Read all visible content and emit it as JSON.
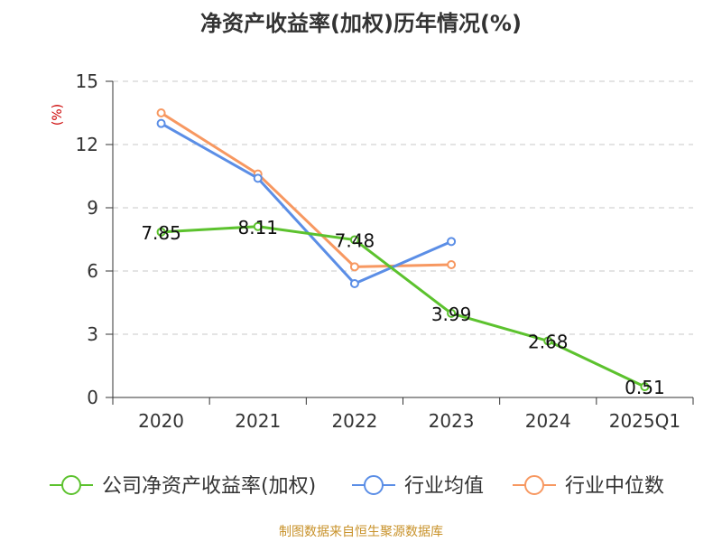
{
  "chart_data": {
    "type": "line",
    "title": "净资产收益率(加权)历年情况(%)",
    "ylabel": "(%)",
    "xlabel": "",
    "categories": [
      "2020",
      "2021",
      "2022",
      "2023",
      "2024",
      "2025Q1"
    ],
    "yticks": [
      0,
      3,
      6,
      9,
      12,
      15
    ],
    "ylim": [
      0,
      15
    ],
    "grid": true,
    "legend_position": "bottom",
    "series": [
      {
        "name": "公司净资产收益率(加权)",
        "color": "#5cc22e",
        "values": [
          7.85,
          8.11,
          7.48,
          3.99,
          2.68,
          0.51
        ],
        "labels": [
          "7.85",
          "8.11",
          "7.48",
          "3.99",
          "2.68",
          "0.51"
        ]
      },
      {
        "name": "行业均值",
        "color": "#5b8ee6",
        "values": [
          13.0,
          10.4,
          5.4,
          7.4,
          null,
          null
        ]
      },
      {
        "name": "行业中位数",
        "color": "#f79861",
        "values": [
          13.5,
          10.6,
          6.2,
          6.3,
          null,
          null
        ]
      }
    ]
  },
  "footer": {
    "source": "制图数据来自恒生聚源数据库"
  }
}
